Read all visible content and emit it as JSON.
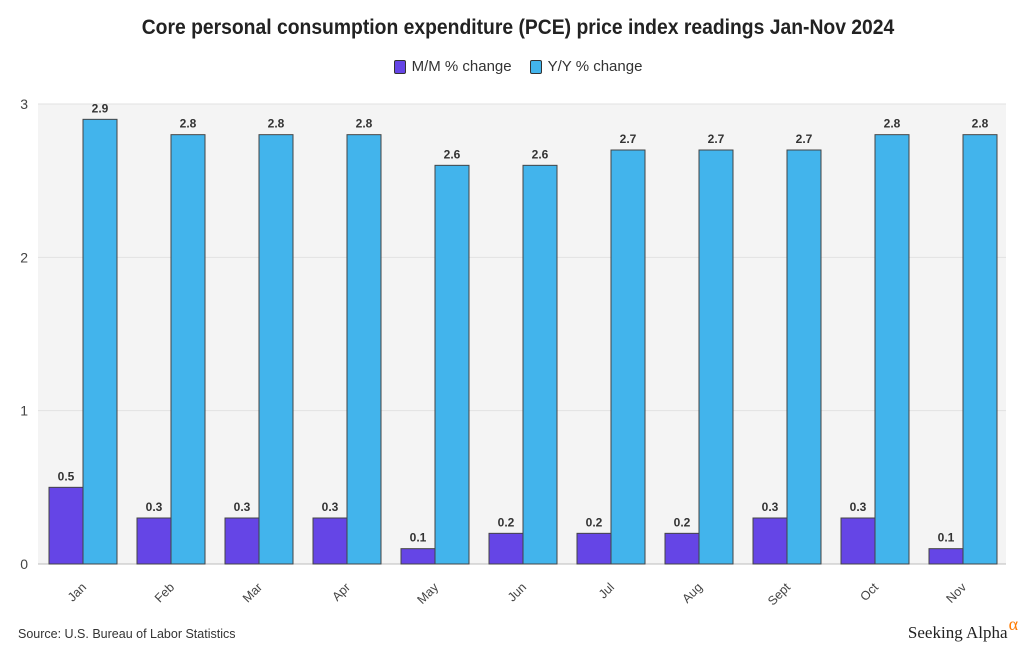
{
  "title": "Core personal consumption expenditure (PCE) price index readings Jan-Nov 2024",
  "source": "Source: U.S. Bureau of Labor Statistics",
  "brand": {
    "name": "Seeking Alpha",
    "symbol": "α"
  },
  "colors": {
    "mm": "#6545E6",
    "yy": "#42B4EC",
    "plot_bg": "#F4F4F4",
    "grid": "#E2E2E2",
    "brand_accent": "#FF7A00"
  },
  "chart_data": {
    "type": "bar",
    "title": "Core personal consumption expenditure (PCE) price index readings Jan-Nov 2024",
    "categories": [
      "Jan",
      "Feb",
      "Mar",
      "Apr",
      "May",
      "Jun",
      "Jul",
      "Aug",
      "Sept",
      "Oct",
      "Nov"
    ],
    "series": [
      {
        "name": "M/M % change",
        "color": "#6545E6",
        "values": [
          0.5,
          0.3,
          0.3,
          0.3,
          0.1,
          0.2,
          0.2,
          0.2,
          0.3,
          0.3,
          0.1
        ]
      },
      {
        "name": "Y/Y % change",
        "color": "#42B4EC",
        "values": [
          2.9,
          2.8,
          2.8,
          2.8,
          2.6,
          2.6,
          2.7,
          2.7,
          2.7,
          2.8,
          2.8
        ]
      }
    ],
    "y_ticks": [
      "0",
      "1",
      "2",
      "3"
    ],
    "ylim": [
      0,
      3
    ],
    "grid": true,
    "legend": "top-center",
    "data_labels": true
  }
}
